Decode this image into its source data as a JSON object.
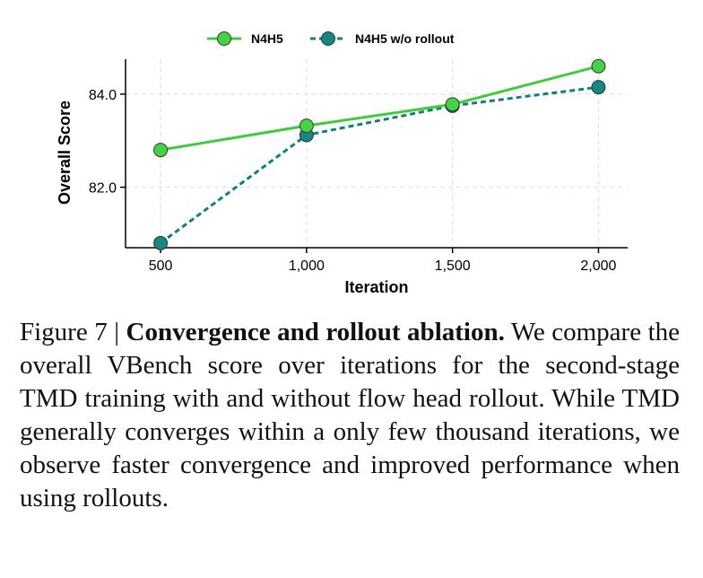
{
  "colors": {
    "series_1": "#3ecc3e",
    "series_1_marker": "#45d245",
    "series_2": "#137f7a",
    "series_2_marker": "#168682",
    "marker_edge": "#333333",
    "grid": "#dcdcdc"
  },
  "chart_data": {
    "type": "line",
    "title": "",
    "xlabel": "Iteration",
    "ylabel": "Overall Score",
    "x": [
      500,
      1000,
      1500,
      2000
    ],
    "x_tick_labels": [
      "500",
      "1,000",
      "1,500",
      "2,000"
    ],
    "y_ticks": [
      82.0,
      84.0
    ],
    "y_tick_labels": [
      "82.0",
      "84.0"
    ],
    "xlim": [
      380,
      2100
    ],
    "ylim": [
      80.7,
      84.75
    ],
    "grid": true,
    "legend_position": "top-center",
    "series": [
      {
        "name": "N4H5",
        "values": [
          82.8,
          83.32,
          83.78,
          84.6
        ],
        "line_style": "solid",
        "marker": "circle"
      },
      {
        "name": "N4H5 w/o rollout",
        "values": [
          80.8,
          83.12,
          83.75,
          84.15
        ],
        "line_style": "dashed",
        "marker": "circle"
      }
    ]
  },
  "caption": {
    "label": "Figure 7 |",
    "title": "Convergence and rollout ablation.",
    "body": "We compare the overall VBench score over iterations for the second-stage TMD training with and without flow head rollout. While TMD generally converges within a only few thousand iterations, we observe faster convergence and improved performance when using rollouts."
  }
}
